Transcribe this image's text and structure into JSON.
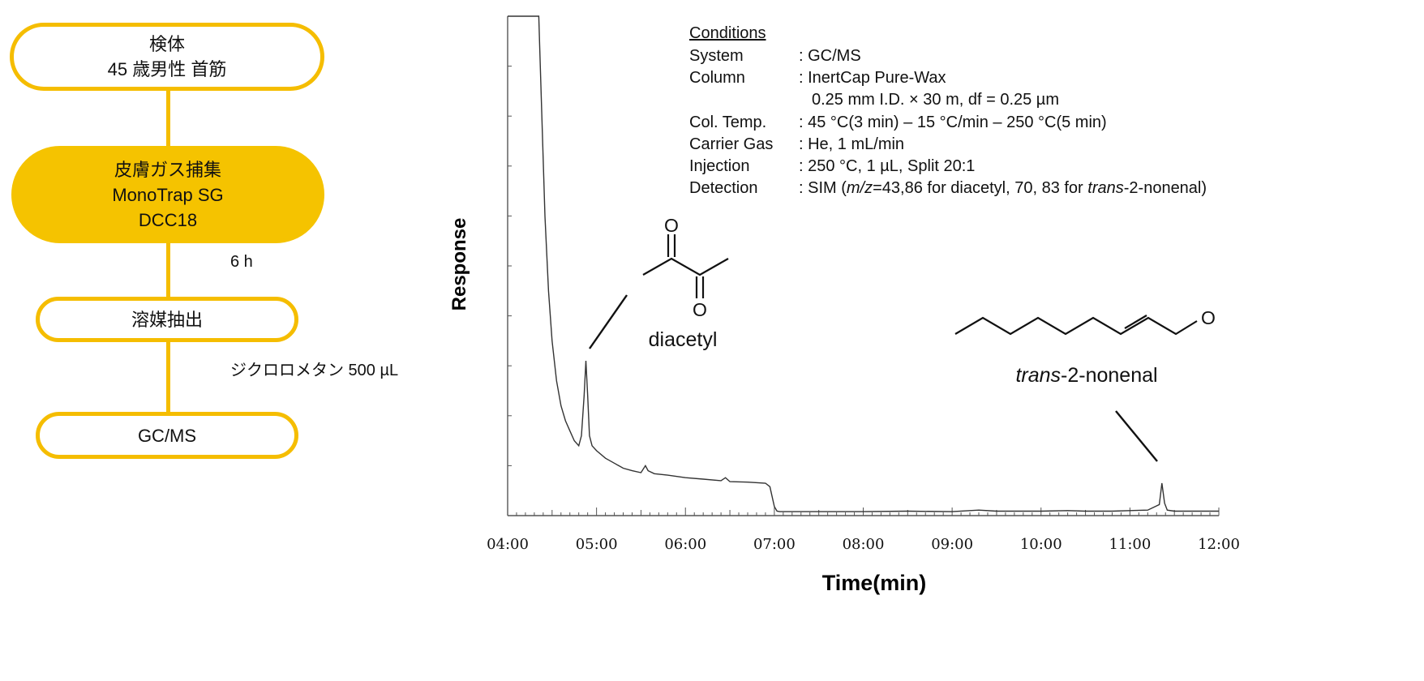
{
  "flow": {
    "specimen": {
      "line1": "検体",
      "line2": "45 歳男性  首筋"
    },
    "collection": {
      "line1": "皮膚ガス捕集",
      "line2": "MonoTrap SG",
      "line3": "DCC18"
    },
    "collection_time": "6 h",
    "extraction": {
      "line1": "溶媒抽出"
    },
    "solvent": "ジクロロメタン  500 µL",
    "analysis": {
      "line1": "GC/MS"
    }
  },
  "conditions": {
    "title": "Conditions",
    "rows": [
      {
        "label": "System",
        "value": ": GC/MS"
      },
      {
        "label": "Column",
        "value": ": InertCap Pure-Wax"
      },
      {
        "label": "",
        "value": "0.25 mm I.D. × 30 m, df = 0.25 µm"
      },
      {
        "label": "Col. Temp.",
        "value": ": 45 °C(3 min) – 15 °C/min – 250 °C(5 min)"
      },
      {
        "label": "Carrier Gas",
        "value": ": He, 1 mL/min"
      },
      {
        "label": "Injection",
        "value": ": 250 °C, 1 µL, Split 20:1"
      },
      {
        "label": "Detection",
        "value_parts": [
          ": SIM (",
          "m/z",
          "=43,86 for diacetyl, 70, 83 for ",
          "trans",
          "-2-nonenal)"
        ]
      }
    ]
  },
  "compounds": {
    "diacetyl": {
      "name": "diacetyl",
      "atoms": [
        "O",
        "O"
      ]
    },
    "nonenal": {
      "name_italic": "trans",
      "name_rest": "-2-nonenal",
      "atoms": [
        "O"
      ]
    }
  },
  "chart_data": {
    "type": "line",
    "title": "",
    "xlabel": "Time(min)",
    "ylabel": "Response",
    "xlim": [
      4.0,
      12.0
    ],
    "ylim": [
      0,
      100
    ],
    "x_tick_labels": [
      "04:00",
      "05:00",
      "06:00",
      "07:00",
      "08:00",
      "09:00",
      "10:00",
      "11:00",
      "12:00"
    ],
    "x_ticks": [
      4,
      5,
      6,
      7,
      8,
      9,
      10,
      11,
      12
    ],
    "y_tick_labels": [],
    "grid": false,
    "series": [
      {
        "x": [
          4.0,
          4.35,
          4.36,
          4.42,
          4.46,
          4.5,
          4.55,
          4.6,
          4.65,
          4.7,
          4.75,
          4.8,
          4.83,
          4.86,
          4.88,
          4.9,
          4.92,
          4.95,
          5.0,
          5.1,
          5.2,
          5.3,
          5.4,
          5.5,
          5.55,
          5.58,
          5.65,
          5.8,
          6.0,
          6.2,
          6.4,
          6.45,
          6.5,
          6.7,
          6.9,
          6.95,
          7.0,
          7.03,
          7.06,
          7.5,
          8.0,
          8.5,
          9.0,
          9.3,
          9.5,
          10.0,
          10.3,
          10.5,
          10.8,
          11.0,
          11.2,
          11.33,
          11.36,
          11.39,
          11.42,
          11.5,
          12.0
        ],
        "y": [
          100,
          100,
          94,
          60,
          45,
          35,
          27,
          22,
          19,
          17,
          15,
          14,
          16,
          24,
          31,
          24,
          16,
          14,
          13,
          11.5,
          10.5,
          9.5,
          9,
          8.6,
          10,
          9,
          8.4,
          8.1,
          7.6,
          7.3,
          7,
          7.6,
          6.8,
          6.7,
          6.5,
          5.8,
          1.8,
          0.9,
          0.8,
          0.8,
          0.8,
          0.9,
          0.8,
          1.1,
          0.9,
          0.9,
          1.0,
          0.9,
          0.9,
          1.0,
          1.1,
          2.2,
          6.5,
          2.5,
          1.1,
          0.9,
          0.9
        ]
      }
    ],
    "annotations": [
      "diacetyl",
      "trans-2-nonenal"
    ]
  }
}
